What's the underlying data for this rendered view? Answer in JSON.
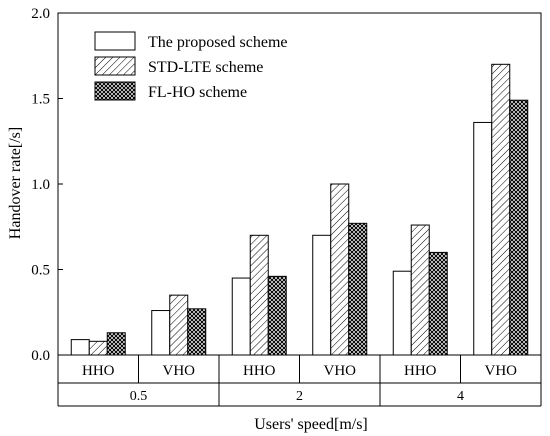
{
  "chart_data": {
    "type": "bar",
    "title": "",
    "ylabel": "Handover rate[/s]",
    "xlabel": "Users' speed[m/s]",
    "ylim": [
      0,
      2.0
    ],
    "yticks": [
      "0.0",
      "0.5",
      "1.0",
      "1.5",
      "2.0"
    ],
    "grid": false,
    "legend_placement": "top-left",
    "categories": [
      "HHO",
      "VHO",
      "HHO",
      "VHO",
      "HHO",
      "VHO"
    ],
    "groups": [
      {
        "label": "0.5",
        "categories": [
          "HHO",
          "VHO"
        ]
      },
      {
        "label": "2",
        "categories": [
          "HHO",
          "VHO"
        ]
      },
      {
        "label": "4",
        "categories": [
          "HHO",
          "VHO"
        ]
      }
    ],
    "series": [
      {
        "name": "The proposed scheme",
        "values": [
          0.09,
          0.26,
          0.45,
          0.7,
          0.49,
          1.36
        ],
        "pattern": "solid-white"
      },
      {
        "name": "STD-LTE scheme",
        "values": [
          0.08,
          0.35,
          0.7,
          1.0,
          0.76,
          1.7
        ],
        "pattern": "diagonal-hatch"
      },
      {
        "name": "FL-HO scheme",
        "values": [
          0.13,
          0.27,
          0.46,
          0.77,
          0.6,
          1.49
        ],
        "pattern": "crosshatch"
      }
    ]
  }
}
